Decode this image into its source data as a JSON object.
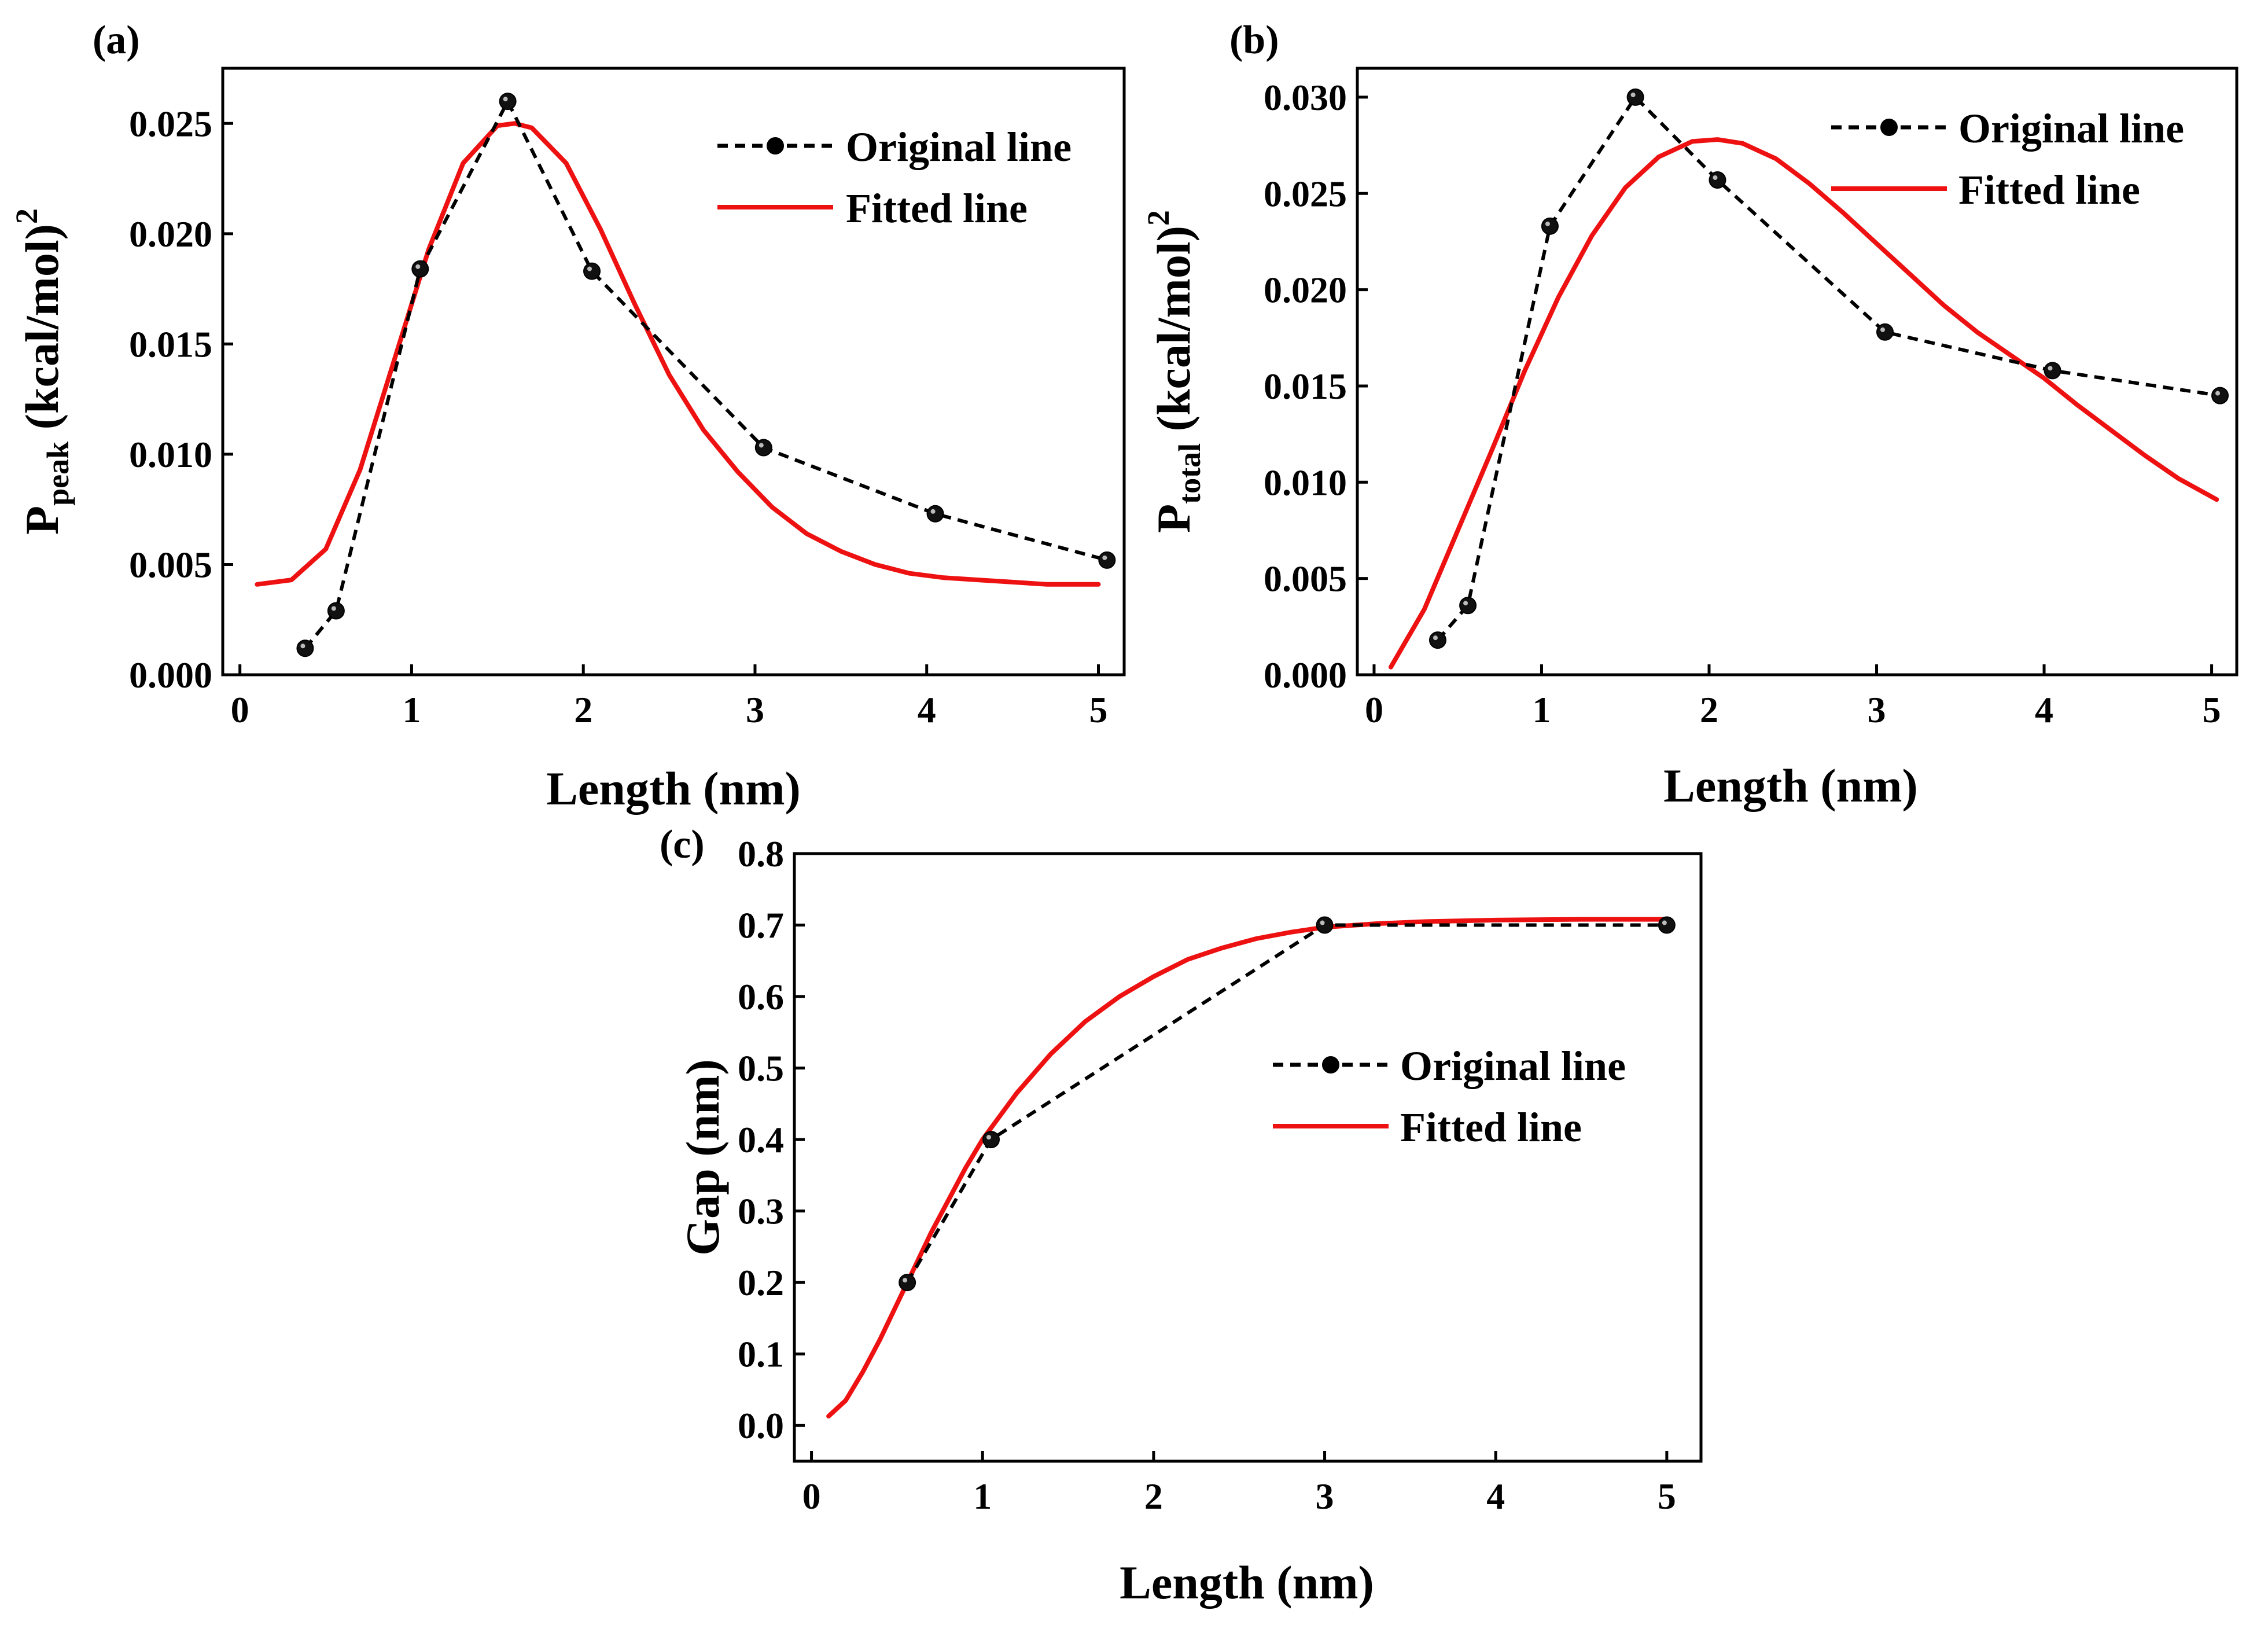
{
  "chart_data": [
    {
      "id": "a",
      "panel_label": "(a)",
      "type": "line",
      "xlabel": "Length (nm)",
      "ylabel_main": "P",
      "ylabel_sub": "peak",
      "ylabel_rest": " (kcal/mol)",
      "ylabel_sup": "2",
      "xlim": [
        -0.1,
        5.15
      ],
      "ylim": [
        0,
        0.0275
      ],
      "xticks": [
        0,
        1,
        2,
        3,
        4,
        5
      ],
      "xtick_labels": [
        "0",
        "1",
        "2",
        "3",
        "4",
        "5"
      ],
      "yticks": [
        0,
        0.005,
        0.01,
        0.015,
        0.02,
        0.025
      ],
      "ytick_labels": [
        "0.000",
        "0.005",
        "0.010",
        "0.015",
        "0.020",
        "0.025"
      ],
      "legend_position": "top-right",
      "series": [
        {
          "name": "Original line",
          "style": "dashed-markers",
          "color": "#000000",
          "x": [
            0.38,
            0.56,
            1.05,
            1.56,
            2.05,
            3.05,
            4.05,
            5.05
          ],
          "y": [
            0.0012,
            0.0029,
            0.0184,
            0.026,
            0.0183,
            0.0103,
            0.0073,
            0.0052
          ]
        },
        {
          "name": "Fitted line",
          "style": "solid",
          "color": "#ee1111",
          "x": [
            0.1,
            0.3,
            0.5,
            0.7,
            0.9,
            1.1,
            1.3,
            1.5,
            1.6,
            1.7,
            1.9,
            2.1,
            2.3,
            2.5,
            2.7,
            2.9,
            3.1,
            3.3,
            3.5,
            3.7,
            3.9,
            4.1,
            4.3,
            4.5,
            4.7,
            5.0
          ],
          "y": [
            0.0041,
            0.0043,
            0.0057,
            0.0093,
            0.0143,
            0.0193,
            0.0232,
            0.0249,
            0.025,
            0.0248,
            0.0232,
            0.0202,
            0.0168,
            0.0136,
            0.0111,
            0.0092,
            0.0076,
            0.0064,
            0.0056,
            0.005,
            0.0046,
            0.0044,
            0.0043,
            0.0042,
            0.0041,
            0.0041
          ]
        }
      ]
    },
    {
      "id": "b",
      "panel_label": "(b)",
      "type": "line",
      "xlabel": "Length (nm)",
      "ylabel_main": "P",
      "ylabel_sub": "total",
      "ylabel_rest": " (kcal/mol)",
      "ylabel_sup": "2",
      "xlim": [
        -0.1,
        5.15
      ],
      "ylim": [
        0,
        0.0315
      ],
      "xticks": [
        0,
        1,
        2,
        3,
        4,
        5
      ],
      "xtick_labels": [
        "0",
        "1",
        "2",
        "3",
        "4",
        "5"
      ],
      "yticks": [
        0,
        0.005,
        0.01,
        0.015,
        0.02,
        0.025,
        0.03
      ],
      "ytick_labels": [
        "0.000",
        "0.005",
        "0.010",
        "0.015",
        "0.020",
        "0.025",
        "0.030"
      ],
      "legend_position": "top-right",
      "series": [
        {
          "name": "Original line",
          "style": "dashed-markers",
          "color": "#000000",
          "x": [
            0.38,
            0.56,
            1.05,
            1.56,
            2.05,
            3.05,
            4.05,
            5.05
          ],
          "y": [
            0.0018,
            0.0036,
            0.0233,
            0.03,
            0.0257,
            0.0178,
            0.0158,
            0.0145
          ]
        },
        {
          "name": "Fitted line",
          "style": "solid",
          "color": "#ee1111",
          "x": [
            0.1,
            0.3,
            0.5,
            0.7,
            0.9,
            1.1,
            1.3,
            1.5,
            1.7,
            1.9,
            2.05,
            2.2,
            2.4,
            2.6,
            2.8,
            3.0,
            3.2,
            3.4,
            3.6,
            3.8,
            4.0,
            4.2,
            4.4,
            4.6,
            4.8,
            5.03
          ],
          "y": [
            0.0004,
            0.0034,
            0.0075,
            0.0116,
            0.0158,
            0.0196,
            0.0228,
            0.0253,
            0.0269,
            0.0277,
            0.0278,
            0.0276,
            0.0268,
            0.0255,
            0.024,
            0.0224,
            0.0208,
            0.0192,
            0.0178,
            0.0166,
            0.0154,
            0.014,
            0.0127,
            0.0114,
            0.0102,
            0.0091
          ]
        }
      ]
    },
    {
      "id": "c",
      "panel_label": "(c)",
      "type": "line",
      "xlabel": "Length (nm)",
      "ylabel_main": "Gap (nm)",
      "ylabel_sub": "",
      "ylabel_rest": "",
      "ylabel_sup": "",
      "xlim": [
        -0.1,
        5.2
      ],
      "ylim": [
        -0.05,
        0.8
      ],
      "xticks": [
        0,
        1,
        2,
        3,
        4,
        5
      ],
      "xtick_labels": [
        "0",
        "1",
        "2",
        "3",
        "4",
        "5"
      ],
      "yticks": [
        0,
        0.1,
        0.2,
        0.3,
        0.4,
        0.5,
        0.6,
        0.7,
        0.8
      ],
      "ytick_labels": [
        "0.0",
        "0.1",
        "0.2",
        "0.3",
        "0.4",
        "0.5",
        "0.6",
        "0.7",
        "0.8"
      ],
      "legend_position": "center-right",
      "series": [
        {
          "name": "Original line",
          "style": "dashed-markers",
          "color": "#000000",
          "x": [
            0.56,
            1.05,
            3.0,
            5.0
          ],
          "y": [
            0.2,
            0.4,
            0.7,
            0.7
          ]
        },
        {
          "name": "Fitted line",
          "style": "solid",
          "color": "#ee1111",
          "x": [
            0.1,
            0.2,
            0.3,
            0.4,
            0.5,
            0.6,
            0.7,
            0.8,
            0.9,
            1.0,
            1.2,
            1.4,
            1.6,
            1.8,
            2.0,
            2.2,
            2.4,
            2.6,
            2.8,
            3.0,
            3.3,
            3.6,
            4.0,
            4.5,
            5.0
          ],
          "y": [
            0.013,
            0.035,
            0.075,
            0.12,
            0.17,
            0.22,
            0.27,
            0.315,
            0.36,
            0.4,
            0.465,
            0.52,
            0.565,
            0.6,
            0.628,
            0.652,
            0.668,
            0.681,
            0.69,
            0.697,
            0.702,
            0.705,
            0.707,
            0.708,
            0.708
          ]
        }
      ]
    }
  ]
}
